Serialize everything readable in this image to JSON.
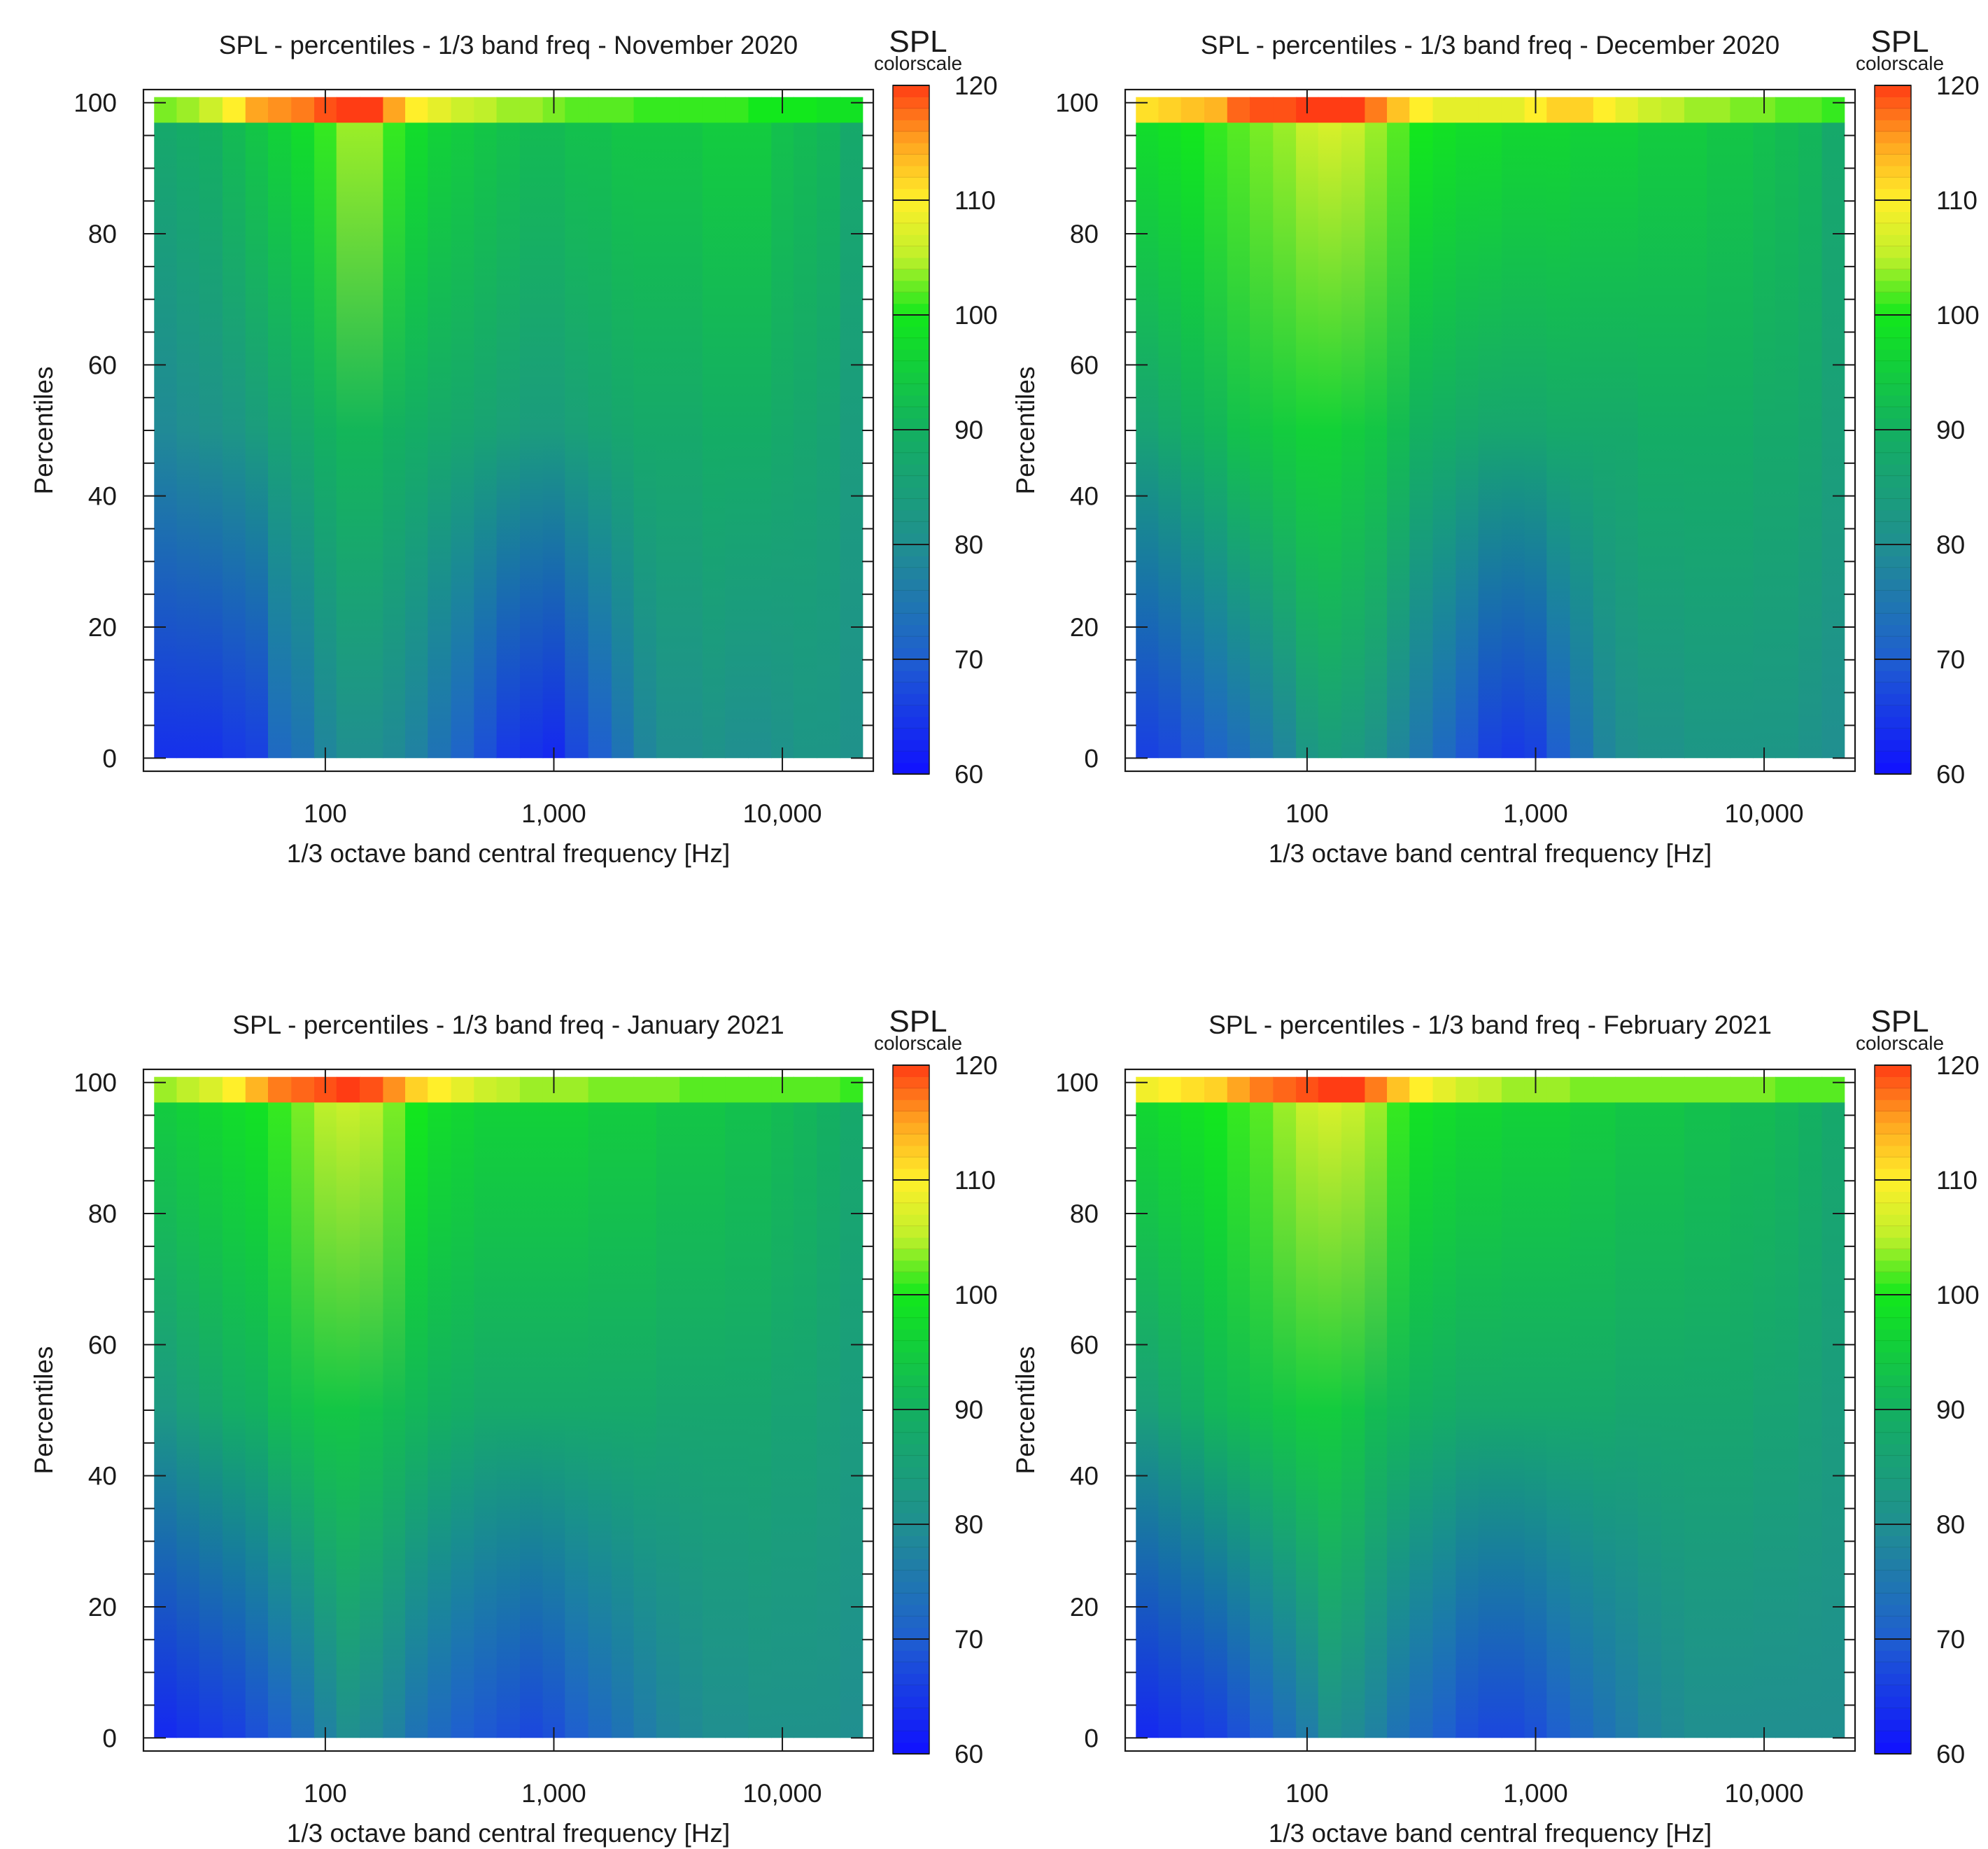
{
  "figure": {
    "description_free": true
  },
  "colors": {
    "scale_stops": [
      "#1010ff",
      "#1f5fd0",
      "#208f90",
      "#13b060",
      "#12e81c",
      "#bff02a",
      "#ffef2a",
      "#ffa620",
      "#ff3c14"
    ],
    "scale_stop_values": [
      60,
      70,
      80,
      90,
      100,
      105,
      110,
      115,
      120
    ],
    "axis": "#1a1a1a",
    "background": "#ffffff"
  },
  "chart_data": [
    {
      "type": "heatmap",
      "title": "SPL - percentiles - 1/3 band freq - November 2020",
      "xlabel": "1/3 octave band central frequency [Hz]",
      "ylabel": "Percentiles",
      "x_scale": "log",
      "xlim": [
        16,
        25000
      ],
      "ylim": [
        -2,
        102
      ],
      "x_ticks": [
        100,
        1000,
        10000
      ],
      "x_tick_labels": [
        "100",
        "1,000",
        "10,000"
      ],
      "y_ticks": [
        0,
        20,
        40,
        60,
        80,
        100
      ],
      "y_tick_labels": [
        "0",
        "20",
        "40",
        "60",
        "80",
        "100"
      ],
      "colorbar": {
        "title": "SPL",
        "subtitle": "colorscale",
        "range": [
          60,
          120
        ],
        "ticks": [
          60,
          70,
          80,
          90,
          100,
          110,
          120
        ],
        "tick_labels": [
          "60",
          "70",
          "80",
          "90",
          "100",
          "110",
          "120"
        ]
      },
      "band_center_hz": [
        20,
        25,
        31.5,
        40,
        50,
        63,
        80,
        100,
        125,
        160,
        200,
        250,
        315,
        400,
        500,
        630,
        800,
        1000,
        1250,
        1600,
        2000,
        2500,
        3150,
        4000,
        5000,
        6300,
        8000,
        10000,
        12500,
        16000,
        20000
      ],
      "percentile_rows": [
        0,
        50,
        97,
        100
      ],
      "spl_db": [
        [
          64,
          64,
          64,
          65,
          66,
          72,
          74,
          78,
          80,
          80,
          79,
          77,
          74,
          71,
          68,
          65,
          64,
          63,
          67,
          70,
          74,
          78,
          80,
          80,
          81,
          80,
          80,
          81,
          82,
          82,
          81
        ],
        [
          79,
          80,
          81,
          82,
          84,
          86,
          88,
          90,
          91,
          91,
          90,
          89,
          88,
          87,
          86,
          85,
          84,
          84,
          85,
          86,
          87,
          88,
          88,
          88,
          89,
          89,
          89,
          88,
          87,
          86,
          84
        ],
        [
          88,
          89,
          90,
          92,
          94,
          96,
          98,
          101,
          104,
          104,
          101,
          98,
          96,
          95,
          94,
          93,
          92,
          92,
          93,
          93,
          94,
          94,
          94,
          94,
          95,
          95,
          95,
          93,
          92,
          91,
          88
        ],
        [
          103,
          104,
          106,
          110,
          115,
          116,
          117,
          119,
          121,
          120,
          115,
          110,
          108,
          106,
          105,
          104,
          104,
          103,
          102,
          102,
          102,
          101,
          101,
          101,
          101,
          101,
          100,
          100,
          100,
          99,
          99
        ]
      ]
    },
    {
      "type": "heatmap",
      "title": "SPL - percentiles - 1/3 band freq - December 2020",
      "xlabel": "1/3 octave band central frequency [Hz]",
      "ylabel": "Percentiles",
      "x_scale": "log",
      "xlim": [
        16,
        25000
      ],
      "ylim": [
        -2,
        102
      ],
      "x_ticks": [
        100,
        1000,
        10000
      ],
      "x_tick_labels": [
        "100",
        "1,000",
        "10,000"
      ],
      "y_ticks": [
        0,
        20,
        40,
        60,
        80,
        100
      ],
      "y_tick_labels": [
        "0",
        "20",
        "40",
        "60",
        "80",
        "100"
      ],
      "colorbar": {
        "title": "SPL",
        "subtitle": "colorscale",
        "range": [
          60,
          120
        ],
        "ticks": [
          60,
          70,
          80,
          90,
          100,
          110,
          120
        ],
        "tick_labels": [
          "60",
          "70",
          "80",
          "90",
          "100",
          "110",
          "120"
        ]
      },
      "band_center_hz": [
        20,
        25,
        31.5,
        40,
        50,
        63,
        80,
        100,
        125,
        160,
        200,
        250,
        315,
        400,
        500,
        630,
        800,
        1000,
        1250,
        1600,
        2000,
        2500,
        3150,
        4000,
        5000,
        6300,
        8000,
        10000,
        12500,
        16000,
        20000
      ],
      "percentile_rows": [
        0,
        50,
        97,
        100
      ],
      "spl_db": [
        [
          66,
          67,
          69,
          71,
          73,
          75,
          78,
          82,
          84,
          83,
          81,
          78,
          75,
          72,
          69,
          66,
          65,
          66,
          70,
          74,
          78,
          80,
          81,
          81,
          82,
          82,
          82,
          82,
          82,
          81,
          80
        ],
        [
          86,
          88,
          90,
          91,
          93,
          94,
          95,
          96,
          96,
          95,
          94,
          92,
          90,
          89,
          88,
          87,
          87,
          87,
          88,
          88,
          88,
          88,
          89,
          89,
          89,
          89,
          89,
          88,
          88,
          87,
          85
        ],
        [
          98,
          99,
          100,
          101,
          102,
          103,
          104,
          106,
          107,
          106,
          104,
          102,
          100,
          99,
          98,
          98,
          97,
          97,
          97,
          96,
          96,
          96,
          95,
          95,
          95,
          94,
          94,
          93,
          92,
          91,
          88
        ],
        [
          111,
          112,
          113,
          114,
          118,
          119,
          119,
          120,
          121,
          120,
          117,
          113,
          110,
          108,
          108,
          108,
          108,
          110,
          112,
          112,
          110,
          108,
          106,
          105,
          104,
          104,
          103,
          103,
          102,
          102,
          101
        ]
      ]
    },
    {
      "type": "heatmap",
      "title": "SPL - percentiles - 1/3 band freq - January 2021",
      "xlabel": "1/3 octave band central frequency [Hz]",
      "ylabel": "Percentiles",
      "x_scale": "log",
      "xlim": [
        16,
        25000
      ],
      "ylim": [
        -2,
        102
      ],
      "x_ticks": [
        100,
        1000,
        10000
      ],
      "x_tick_labels": [
        "100",
        "1,000",
        "10,000"
      ],
      "y_ticks": [
        0,
        20,
        40,
        60,
        80,
        100
      ],
      "y_tick_labels": [
        "0",
        "20",
        "40",
        "60",
        "80",
        "100"
      ],
      "colorbar": {
        "title": "SPL",
        "subtitle": "colorscale",
        "range": [
          60,
          120
        ],
        "ticks": [
          60,
          70,
          80,
          90,
          100,
          110,
          120
        ],
        "tick_labels": [
          "60",
          "70",
          "80",
          "90",
          "100",
          "110",
          "120"
        ]
      },
      "band_center_hz": [
        20,
        25,
        31.5,
        40,
        50,
        63,
        80,
        100,
        125,
        160,
        200,
        250,
        315,
        400,
        500,
        630,
        800,
        1000,
        1250,
        1600,
        2000,
        2500,
        3150,
        4000,
        5000,
        6300,
        8000,
        10000,
        12500,
        16000,
        20000
      ],
      "percentile_rows": [
        0,
        50,
        97,
        100
      ],
      "spl_db": [
        [
          63,
          64,
          65,
          66,
          68,
          70,
          73,
          77,
          80,
          79,
          77,
          74,
          72,
          70,
          69,
          68,
          67,
          68,
          70,
          72,
          74,
          76,
          78,
          79,
          80,
          80,
          81,
          81,
          81,
          81,
          80
        ],
        [
          83,
          85,
          87,
          89,
          90,
          92,
          93,
          94,
          94,
          93,
          92,
          91,
          90,
          89,
          88,
          88,
          88,
          88,
          88,
          88,
          88,
          88,
          87,
          87,
          87,
          87,
          87,
          86,
          86,
          85,
          84
        ],
        [
          95,
          96,
          97,
          98,
          99,
          101,
          103,
          105,
          106,
          105,
          103,
          100,
          98,
          97,
          96,
          96,
          96,
          96,
          96,
          95,
          95,
          95,
          94,
          94,
          94,
          93,
          93,
          92,
          91,
          90,
          88
        ],
        [
          104,
          105,
          107,
          110,
          114,
          117,
          118,
          119,
          120,
          119,
          116,
          112,
          110,
          108,
          106,
          105,
          104,
          104,
          104,
          103,
          103,
          103,
          103,
          102,
          102,
          102,
          102,
          102,
          102,
          102,
          101
        ]
      ]
    },
    {
      "type": "heatmap",
      "title": "SPL - percentiles - 1/3 band freq - February 2021",
      "xlabel": "1/3 octave band central frequency [Hz]",
      "ylabel": "Percentiles",
      "x_scale": "log",
      "xlim": [
        16,
        25000
      ],
      "ylim": [
        -2,
        102
      ],
      "x_ticks": [
        100,
        1000,
        10000
      ],
      "x_tick_labels": [
        "100",
        "1,000",
        "10,000"
      ],
      "y_ticks": [
        0,
        20,
        40,
        60,
        80,
        100
      ],
      "y_tick_labels": [
        "0",
        "20",
        "40",
        "60",
        "80",
        "100"
      ],
      "colorbar": {
        "title": "SPL",
        "subtitle": "colorscale",
        "range": [
          60,
          120
        ],
        "ticks": [
          60,
          70,
          80,
          90,
          100,
          110,
          120
        ],
        "tick_labels": [
          "60",
          "70",
          "80",
          "90",
          "100",
          "110",
          "120"
        ]
      },
      "band_center_hz": [
        20,
        25,
        31.5,
        40,
        50,
        63,
        80,
        100,
        125,
        160,
        200,
        250,
        315,
        400,
        500,
        630,
        800,
        1000,
        1250,
        1600,
        2000,
        2500,
        3150,
        4000,
        5000,
        6300,
        8000,
        10000,
        12500,
        16000,
        20000
      ],
      "percentile_rows": [
        0,
        50,
        97,
        100
      ],
      "spl_db": [
        [
          63,
          64,
          65,
          66,
          68,
          70,
          73,
          76,
          80,
          79,
          77,
          74,
          72,
          70,
          68,
          67,
          67,
          68,
          70,
          72,
          74,
          76,
          78,
          79,
          80,
          80,
          80,
          80,
          80,
          80,
          80
        ],
        [
          85,
          87,
          89,
          91,
          92,
          93,
          94,
          95,
          95,
          94,
          92,
          91,
          90,
          89,
          88,
          88,
          88,
          88,
          88,
          88,
          88,
          87,
          87,
          87,
          87,
          87,
          87,
          86,
          86,
          85,
          84
        ],
        [
          97,
          98,
          99,
          100,
          101,
          102,
          104,
          106,
          107,
          106,
          104,
          101,
          99,
          98,
          97,
          97,
          96,
          96,
          96,
          95,
          95,
          94,
          94,
          94,
          93,
          93,
          92,
          92,
          91,
          90,
          88
        ],
        [
          109,
          110,
          111,
          112,
          115,
          117,
          118,
          119,
          121,
          120,
          117,
          113,
          110,
          108,
          106,
          105,
          104,
          104,
          104,
          103,
          103,
          103,
          103,
          103,
          103,
          103,
          103,
          103,
          102,
          102,
          102
        ]
      ]
    }
  ]
}
